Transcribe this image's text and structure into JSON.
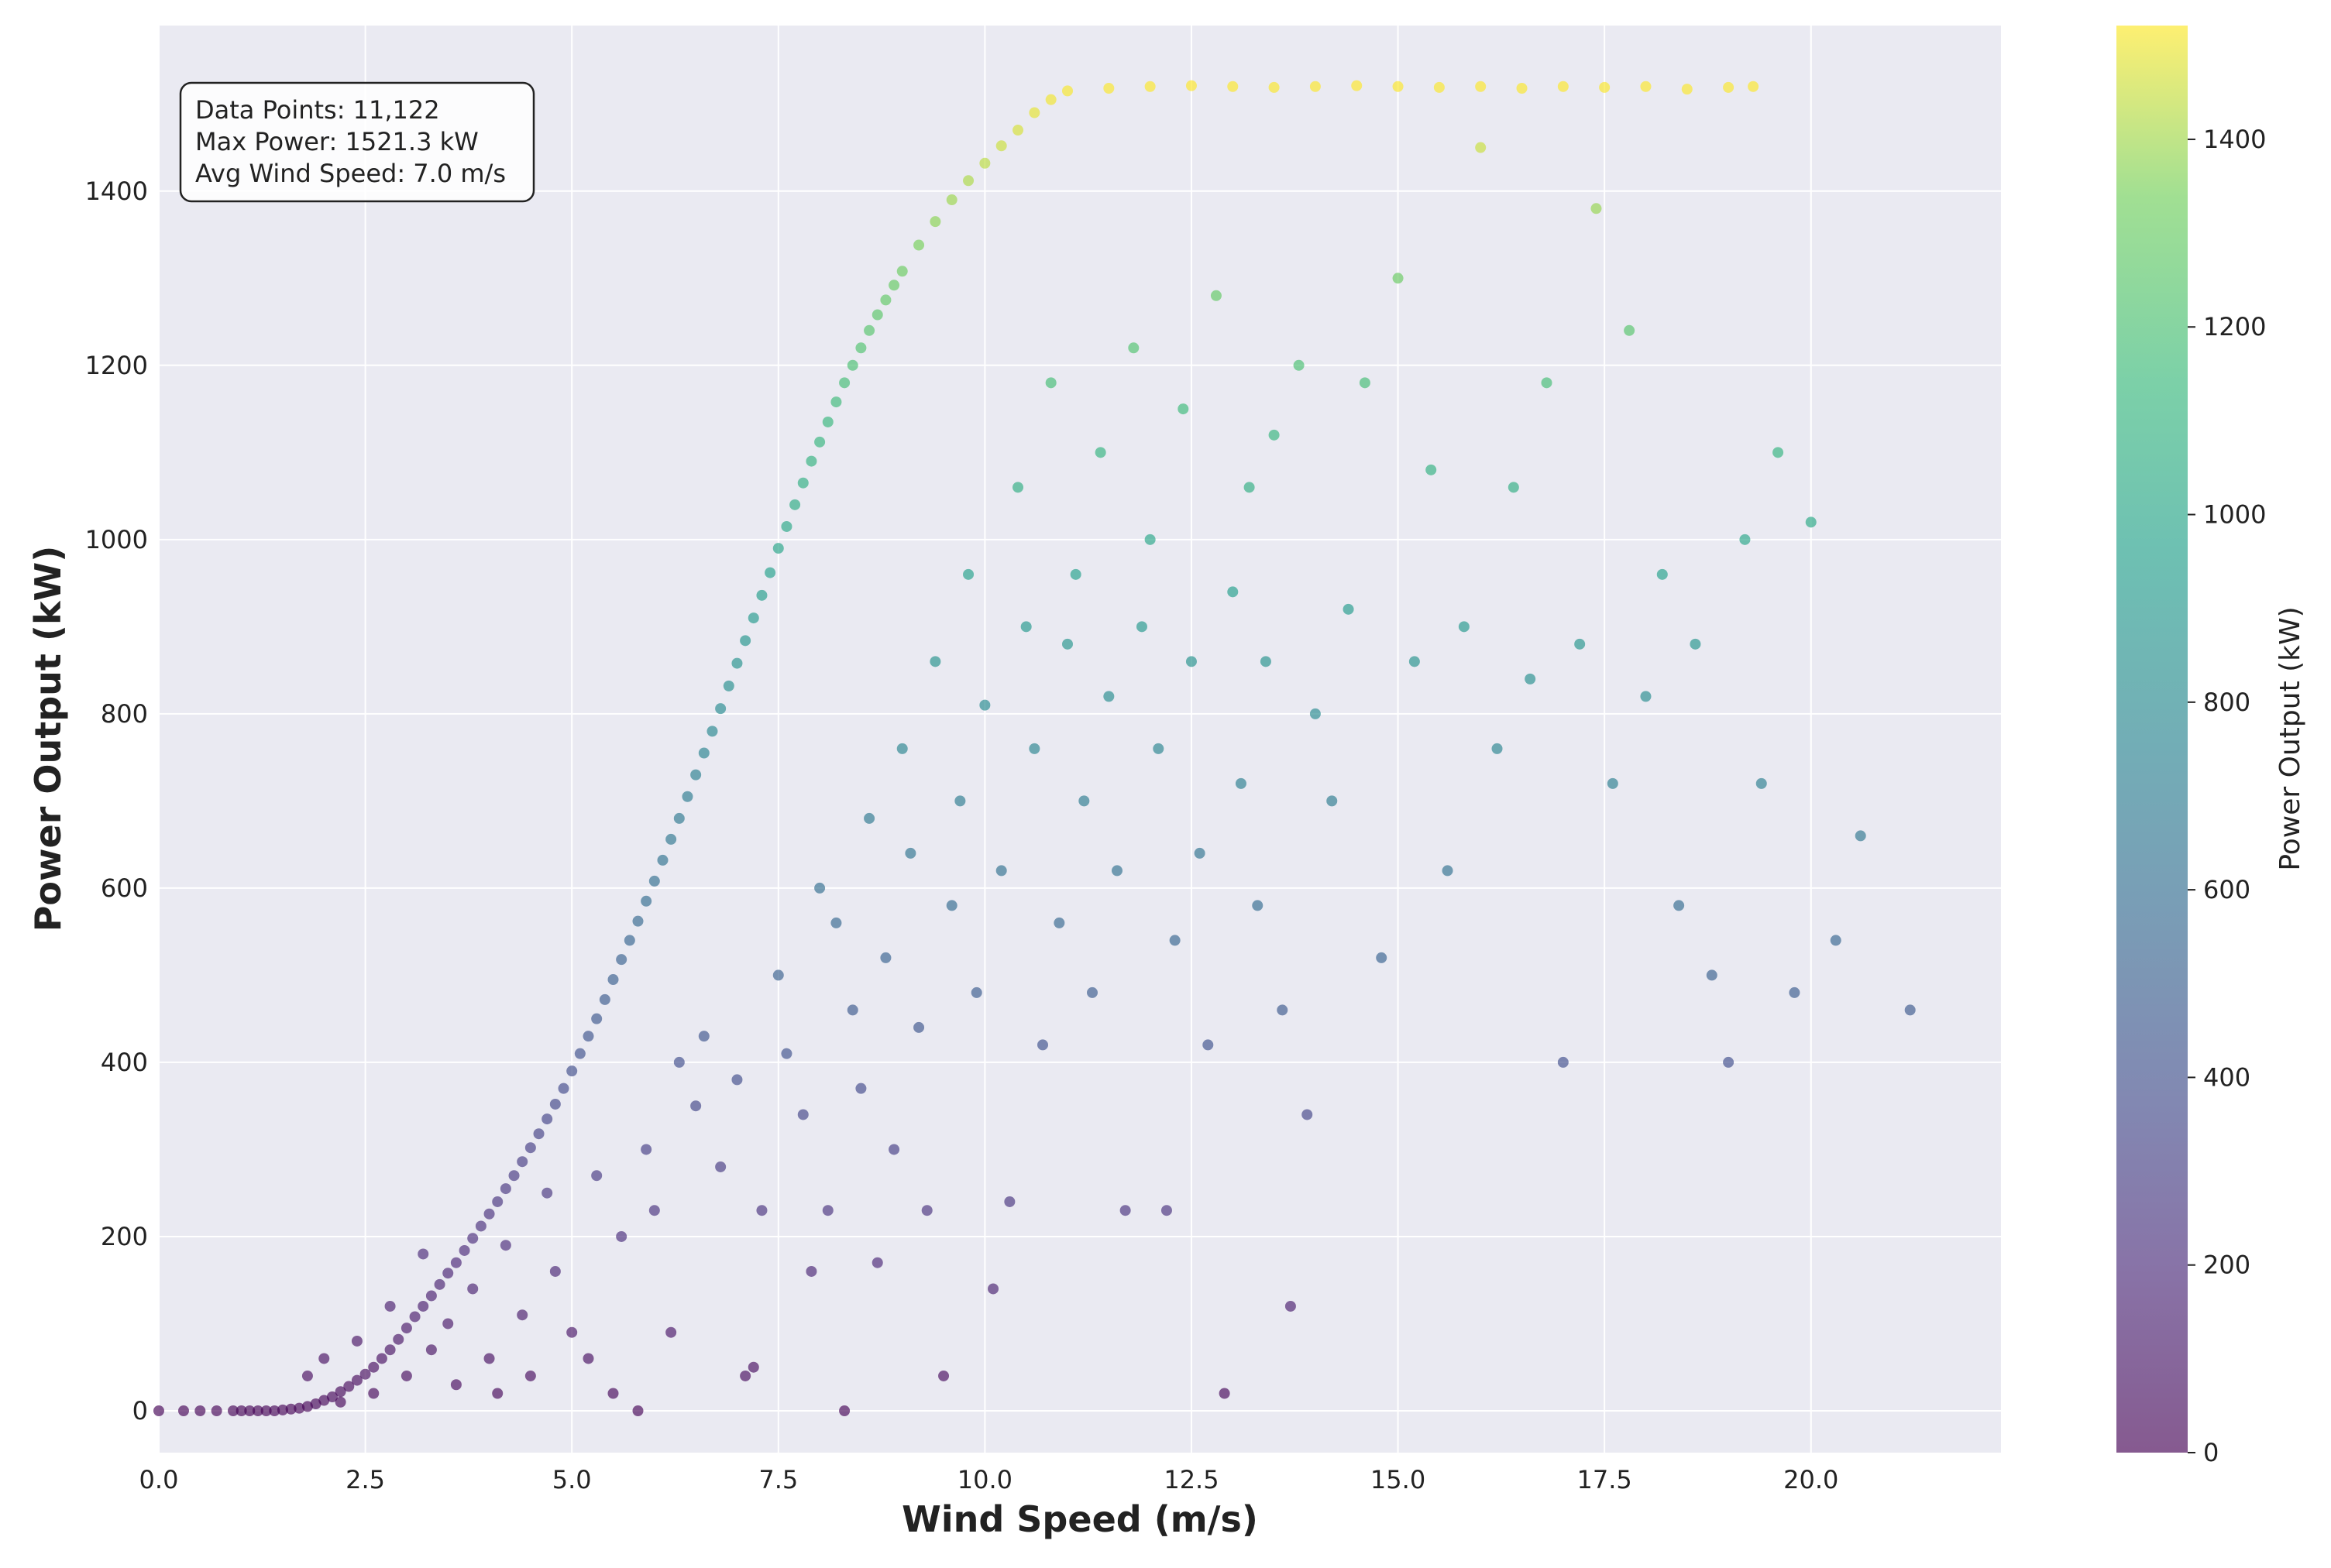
{
  "chart_data": {
    "type": "scatter",
    "title": "",
    "xlabel": "Wind Speed (m/s)",
    "ylabel": "Power Output (kW)",
    "xlim": [
      0,
      22.3
    ],
    "ylim": [
      -48,
      1590
    ],
    "x_ticks": [
      "0.0",
      "2.5",
      "5.0",
      "7.5",
      "10.0",
      "12.5",
      "15.0",
      "17.5",
      "20.0"
    ],
    "y_ticks": [
      "0",
      "200",
      "400",
      "600",
      "800",
      "1000",
      "1200",
      "1400"
    ],
    "grid": true,
    "background": "#eaeaf2",
    "colormap": "viridis",
    "point_alpha": 0.65,
    "colorbar": {
      "label": "Power Output (kW)",
      "ticks": [
        "0",
        "200",
        "400",
        "600",
        "800",
        "1000",
        "1200",
        "1400"
      ],
      "range": [
        0,
        1521.3
      ]
    },
    "stats_box": {
      "lines": [
        "Data Points: 11,122",
        "Max Power: 1521.3 kW",
        "Avg Wind Speed: 7.0 m/s"
      ],
      "placement": "top-left"
    },
    "points": [
      [
        0.0,
        0
      ],
      [
        0.3,
        0
      ],
      [
        0.5,
        0
      ],
      [
        0.7,
        0
      ],
      [
        0.9,
        0
      ],
      [
        1.0,
        0
      ],
      [
        1.1,
        0
      ],
      [
        1.2,
        0
      ],
      [
        1.3,
        0
      ],
      [
        1.4,
        0
      ],
      [
        1.5,
        1
      ],
      [
        1.6,
        2
      ],
      [
        1.7,
        3
      ],
      [
        1.8,
        5
      ],
      [
        1.9,
        8
      ],
      [
        2.0,
        12
      ],
      [
        2.1,
        16
      ],
      [
        2.2,
        22
      ],
      [
        2.3,
        28
      ],
      [
        2.4,
        35
      ],
      [
        2.5,
        42
      ],
      [
        2.6,
        50
      ],
      [
        2.7,
        60
      ],
      [
        2.8,
        70
      ],
      [
        2.9,
        82
      ],
      [
        3.0,
        95
      ],
      [
        3.1,
        108
      ],
      [
        3.2,
        120
      ],
      [
        3.3,
        132
      ],
      [
        3.4,
        145
      ],
      [
        3.5,
        158
      ],
      [
        3.6,
        170
      ],
      [
        3.7,
        184
      ],
      [
        3.8,
        198
      ],
      [
        3.9,
        212
      ],
      [
        4.0,
        226
      ],
      [
        4.1,
        240
      ],
      [
        4.2,
        255
      ],
      [
        4.3,
        270
      ],
      [
        4.4,
        286
      ],
      [
        4.5,
        302
      ],
      [
        4.6,
        318
      ],
      [
        4.7,
        335
      ],
      [
        4.8,
        352
      ],
      [
        4.9,
        370
      ],
      [
        5.0,
        390
      ],
      [
        5.1,
        410
      ],
      [
        5.2,
        430
      ],
      [
        5.3,
        450
      ],
      [
        5.4,
        472
      ],
      [
        5.5,
        495
      ],
      [
        5.6,
        518
      ],
      [
        5.7,
        540
      ],
      [
        5.8,
        562
      ],
      [
        5.9,
        585
      ],
      [
        6.0,
        608
      ],
      [
        6.1,
        632
      ],
      [
        6.2,
        656
      ],
      [
        6.3,
        680
      ],
      [
        6.4,
        705
      ],
      [
        6.5,
        730
      ],
      [
        6.6,
        755
      ],
      [
        6.7,
        780
      ],
      [
        6.8,
        806
      ],
      [
        6.9,
        832
      ],
      [
        7.0,
        858
      ],
      [
        7.1,
        884
      ],
      [
        7.2,
        910
      ],
      [
        7.3,
        936
      ],
      [
        7.4,
        962
      ],
      [
        7.5,
        990
      ],
      [
        7.6,
        1015
      ],
      [
        7.7,
        1040
      ],
      [
        7.8,
        1065
      ],
      [
        7.9,
        1090
      ],
      [
        8.0,
        1112
      ],
      [
        8.1,
        1135
      ],
      [
        8.2,
        1158
      ],
      [
        8.3,
        1180
      ],
      [
        8.4,
        1200
      ],
      [
        8.5,
        1220
      ],
      [
        8.6,
        1240
      ],
      [
        8.7,
        1258
      ],
      [
        8.8,
        1275
      ],
      [
        8.9,
        1292
      ],
      [
        9.0,
        1308
      ],
      [
        9.2,
        1338
      ],
      [
        9.4,
        1365
      ],
      [
        9.6,
        1390
      ],
      [
        9.8,
        1412
      ],
      [
        10.0,
        1432
      ],
      [
        10.2,
        1452
      ],
      [
        10.4,
        1470
      ],
      [
        10.6,
        1490
      ],
      [
        10.8,
        1505
      ],
      [
        11.0,
        1515
      ],
      [
        11.5,
        1518
      ],
      [
        12.0,
        1520
      ],
      [
        12.5,
        1521
      ],
      [
        13.0,
        1520
      ],
      [
        13.5,
        1519
      ],
      [
        14.0,
        1520
      ],
      [
        14.5,
        1521
      ],
      [
        15.0,
        1520
      ],
      [
        15.5,
        1519
      ],
      [
        16.0,
        1520
      ],
      [
        16.5,
        1518
      ],
      [
        17.0,
        1520
      ],
      [
        17.5,
        1519
      ],
      [
        18.0,
        1520
      ],
      [
        18.5,
        1517
      ],
      [
        19.0,
        1519
      ],
      [
        19.3,
        1520
      ],
      [
        1.8,
        40
      ],
      [
        2.0,
        60
      ],
      [
        2.2,
        10
      ],
      [
        2.4,
        80
      ],
      [
        2.6,
        20
      ],
      [
        2.8,
        120
      ],
      [
        3.0,
        40
      ],
      [
        3.2,
        180
      ],
      [
        3.3,
        70
      ],
      [
        3.5,
        100
      ],
      [
        3.6,
        30
      ],
      [
        3.8,
        140
      ],
      [
        4.0,
        60
      ],
      [
        4.1,
        20
      ],
      [
        4.2,
        190
      ],
      [
        4.4,
        110
      ],
      [
        4.5,
        40
      ],
      [
        4.7,
        250
      ],
      [
        4.8,
        160
      ],
      [
        5.0,
        90
      ],
      [
        5.2,
        60
      ],
      [
        5.3,
        270
      ],
      [
        5.5,
        20
      ],
      [
        5.6,
        200
      ],
      [
        5.8,
        0
      ],
      [
        5.9,
        300
      ],
      [
        6.0,
        230
      ],
      [
        6.2,
        90
      ],
      [
        6.3,
        400
      ],
      [
        6.5,
        350
      ],
      [
        6.6,
        430
      ],
      [
        6.8,
        280
      ],
      [
        7.0,
        380
      ],
      [
        7.1,
        40
      ],
      [
        7.2,
        50
      ],
      [
        7.3,
        230
      ],
      [
        7.5,
        500
      ],
      [
        7.6,
        410
      ],
      [
        7.8,
        340
      ],
      [
        7.9,
        160
      ],
      [
        8.0,
        600
      ],
      [
        8.1,
        230
      ],
      [
        8.2,
        560
      ],
      [
        8.3,
        0
      ],
      [
        8.4,
        460
      ],
      [
        8.5,
        370
      ],
      [
        8.6,
        680
      ],
      [
        8.7,
        170
      ],
      [
        8.8,
        520
      ],
      [
        8.9,
        300
      ],
      [
        9.0,
        760
      ],
      [
        9.1,
        640
      ],
      [
        9.2,
        440
      ],
      [
        9.3,
        230
      ],
      [
        9.4,
        860
      ],
      [
        9.5,
        40
      ],
      [
        9.6,
        580
      ],
      [
        9.7,
        700
      ],
      [
        9.8,
        960
      ],
      [
        9.9,
        480
      ],
      [
        10.0,
        810
      ],
      [
        10.1,
        140
      ],
      [
        10.2,
        620
      ],
      [
        10.3,
        240
      ],
      [
        10.4,
        1060
      ],
      [
        10.5,
        900
      ],
      [
        10.6,
        760
      ],
      [
        10.7,
        420
      ],
      [
        10.8,
        1180
      ],
      [
        10.9,
        560
      ],
      [
        11.0,
        880
      ],
      [
        11.1,
        960
      ],
      [
        11.2,
        700
      ],
      [
        11.3,
        480
      ],
      [
        11.4,
        1100
      ],
      [
        11.5,
        820
      ],
      [
        11.6,
        620
      ],
      [
        11.7,
        230
      ],
      [
        11.8,
        1220
      ],
      [
        11.9,
        900
      ],
      [
        12.0,
        1000
      ],
      [
        12.1,
        760
      ],
      [
        12.2,
        230
      ],
      [
        12.3,
        540
      ],
      [
        12.4,
        1150
      ],
      [
        12.5,
        860
      ],
      [
        12.6,
        640
      ],
      [
        12.7,
        420
      ],
      [
        12.8,
        1280
      ],
      [
        12.9,
        20
      ],
      [
        13.0,
        940
      ],
      [
        13.1,
        720
      ],
      [
        13.2,
        1060
      ],
      [
        13.3,
        580
      ],
      [
        13.4,
        860
      ],
      [
        13.5,
        1120
      ],
      [
        13.6,
        460
      ],
      [
        13.7,
        120
      ],
      [
        13.8,
        1200
      ],
      [
        13.9,
        340
      ],
      [
        14.0,
        800
      ],
      [
        14.2,
        700
      ],
      [
        14.4,
        920
      ],
      [
        14.6,
        1180
      ],
      [
        14.8,
        520
      ],
      [
        15.0,
        1300
      ],
      [
        15.2,
        860
      ],
      [
        15.4,
        1080
      ],
      [
        15.6,
        620
      ],
      [
        15.8,
        900
      ],
      [
        16.0,
        1450
      ],
      [
        16.2,
        760
      ],
      [
        16.4,
        1060
      ],
      [
        16.6,
        840
      ],
      [
        16.8,
        1180
      ],
      [
        17.0,
        400
      ],
      [
        17.2,
        880
      ],
      [
        17.4,
        1380
      ],
      [
        17.6,
        720
      ],
      [
        17.8,
        1240
      ],
      [
        18.0,
        820
      ],
      [
        18.2,
        960
      ],
      [
        18.4,
        580
      ],
      [
        18.6,
        880
      ],
      [
        18.8,
        500
      ],
      [
        19.0,
        400
      ],
      [
        19.2,
        1000
      ],
      [
        19.4,
        720
      ],
      [
        19.6,
        1100
      ],
      [
        19.8,
        480
      ],
      [
        20.0,
        1020
      ],
      [
        20.3,
        540
      ],
      [
        20.6,
        660
      ],
      [
        21.2,
        460
      ]
    ]
  }
}
